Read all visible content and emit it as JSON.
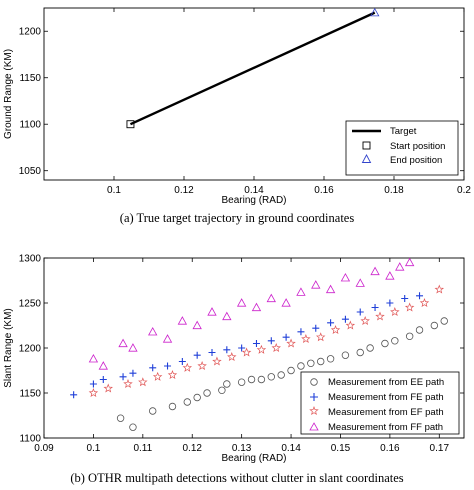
{
  "chart_data": [
    {
      "type": "line",
      "caption": "(a)  True target trajectory in ground coordinates",
      "xlabel": "Bearing (RAD)",
      "ylabel": "Ground Range (KM)",
      "xlim": [
        0.08,
        0.2
      ],
      "ylim": [
        1040,
        1225
      ],
      "xticks": [
        "0.1",
        "0.12",
        "0.14",
        "0.16",
        "0.18",
        "0.2"
      ],
      "xtick_values": [
        0.1,
        0.12,
        0.14,
        0.16,
        0.18,
        0.2
      ],
      "yticks": [
        "1050",
        "1100",
        "1150",
        "1200"
      ],
      "ytick_values": [
        1050,
        1100,
        1150,
        1200
      ],
      "series": [
        {
          "name": "Target",
          "style": "line",
          "color": "#000000",
          "x": [
            0.1047,
            0.1745
          ],
          "y": [
            1100,
            1220
          ]
        },
        {
          "name": "Start position",
          "style": "square",
          "color": "#000000",
          "x": [
            0.1047
          ],
          "y": [
            1100
          ]
        },
        {
          "name": "End position",
          "style": "triangle",
          "color": "#3344cc",
          "x": [
            0.1745
          ],
          "y": [
            1220
          ]
        }
      ],
      "legend": "bottom-right"
    },
    {
      "type": "scatter",
      "caption": "(b)  OTHR multipath detections without clutter in slant coordinates",
      "xlabel": "Bearing (RAD)",
      "ylabel": "Slant Range (KM)",
      "xlim": [
        0.09,
        0.175
      ],
      "ylim": [
        1100,
        1300
      ],
      "xticks": [
        "0.09",
        "0.1",
        "0.11",
        "0.12",
        "0.13",
        "0.14",
        "0.15",
        "0.16",
        "0.17"
      ],
      "xtick_values": [
        0.09,
        0.1,
        0.11,
        0.12,
        0.13,
        0.14,
        0.15,
        0.16,
        0.17
      ],
      "yticks": [
        "1100",
        "1150",
        "1200",
        "1250",
        "1300"
      ],
      "ytick_values": [
        1100,
        1150,
        1200,
        1250,
        1300
      ],
      "series": [
        {
          "name": "Measurement from EE path",
          "style": "circle",
          "color": "#555555",
          "x": [
            0.1055,
            0.108,
            0.112,
            0.116,
            0.119,
            0.121,
            0.123,
            0.126,
            0.127,
            0.13,
            0.132,
            0.134,
            0.136,
            0.138,
            0.14,
            0.142,
            0.144,
            0.146,
            0.148,
            0.151,
            0.154,
            0.156,
            0.159,
            0.161,
            0.164,
            0.166,
            0.169,
            0.171
          ],
          "y": [
            1122,
            1112,
            1130,
            1135,
            1140,
            1145,
            1150,
            1153,
            1160,
            1162,
            1165,
            1165,
            1168,
            1170,
            1175,
            1180,
            1183,
            1185,
            1188,
            1192,
            1195,
            1200,
            1205,
            1208,
            1213,
            1220,
            1225,
            1230
          ]
        },
        {
          "name": "Measurement from FE path",
          "style": "plus",
          "color": "#1f3fd8",
          "x": [
            0.096,
            0.1,
            0.102,
            0.106,
            0.108,
            0.112,
            0.115,
            0.118,
            0.121,
            0.124,
            0.127,
            0.13,
            0.133,
            0.136,
            0.139,
            0.142,
            0.145,
            0.148,
            0.151,
            0.154,
            0.157,
            0.16,
            0.163,
            0.166
          ],
          "y": [
            1148,
            1160,
            1165,
            1168,
            1172,
            1178,
            1180,
            1185,
            1192,
            1195,
            1198,
            1200,
            1205,
            1208,
            1212,
            1218,
            1222,
            1228,
            1232,
            1240,
            1245,
            1250,
            1255,
            1258
          ]
        },
        {
          "name": "Measurement from EF path",
          "style": "star",
          "color": "#e05555",
          "x": [
            0.1,
            0.103,
            0.107,
            0.11,
            0.113,
            0.116,
            0.119,
            0.122,
            0.125,
            0.128,
            0.131,
            0.134,
            0.137,
            0.14,
            0.143,
            0.146,
            0.149,
            0.152,
            0.155,
            0.158,
            0.161,
            0.164,
            0.167,
            0.17
          ],
          "y": [
            1150,
            1155,
            1160,
            1162,
            1168,
            1170,
            1178,
            1180,
            1185,
            1190,
            1195,
            1198,
            1200,
            1205,
            1210,
            1212,
            1220,
            1225,
            1230,
            1235,
            1240,
            1245,
            1250,
            1265
          ]
        },
        {
          "name": "Measurement from FF path",
          "style": "triangle",
          "color": "#cc22cc",
          "x": [
            0.1,
            0.102,
            0.106,
            0.108,
            0.112,
            0.115,
            0.118,
            0.121,
            0.124,
            0.127,
            0.13,
            0.133,
            0.136,
            0.139,
            0.142,
            0.145,
            0.148,
            0.151,
            0.154,
            0.157,
            0.16,
            0.162,
            0.164
          ],
          "y": [
            1188,
            1180,
            1205,
            1200,
            1218,
            1210,
            1230,
            1225,
            1240,
            1235,
            1250,
            1245,
            1255,
            1250,
            1262,
            1270,
            1265,
            1278,
            1272,
            1285,
            1280,
            1290,
            1295
          ]
        }
      ],
      "legend": "bottom-right"
    }
  ]
}
